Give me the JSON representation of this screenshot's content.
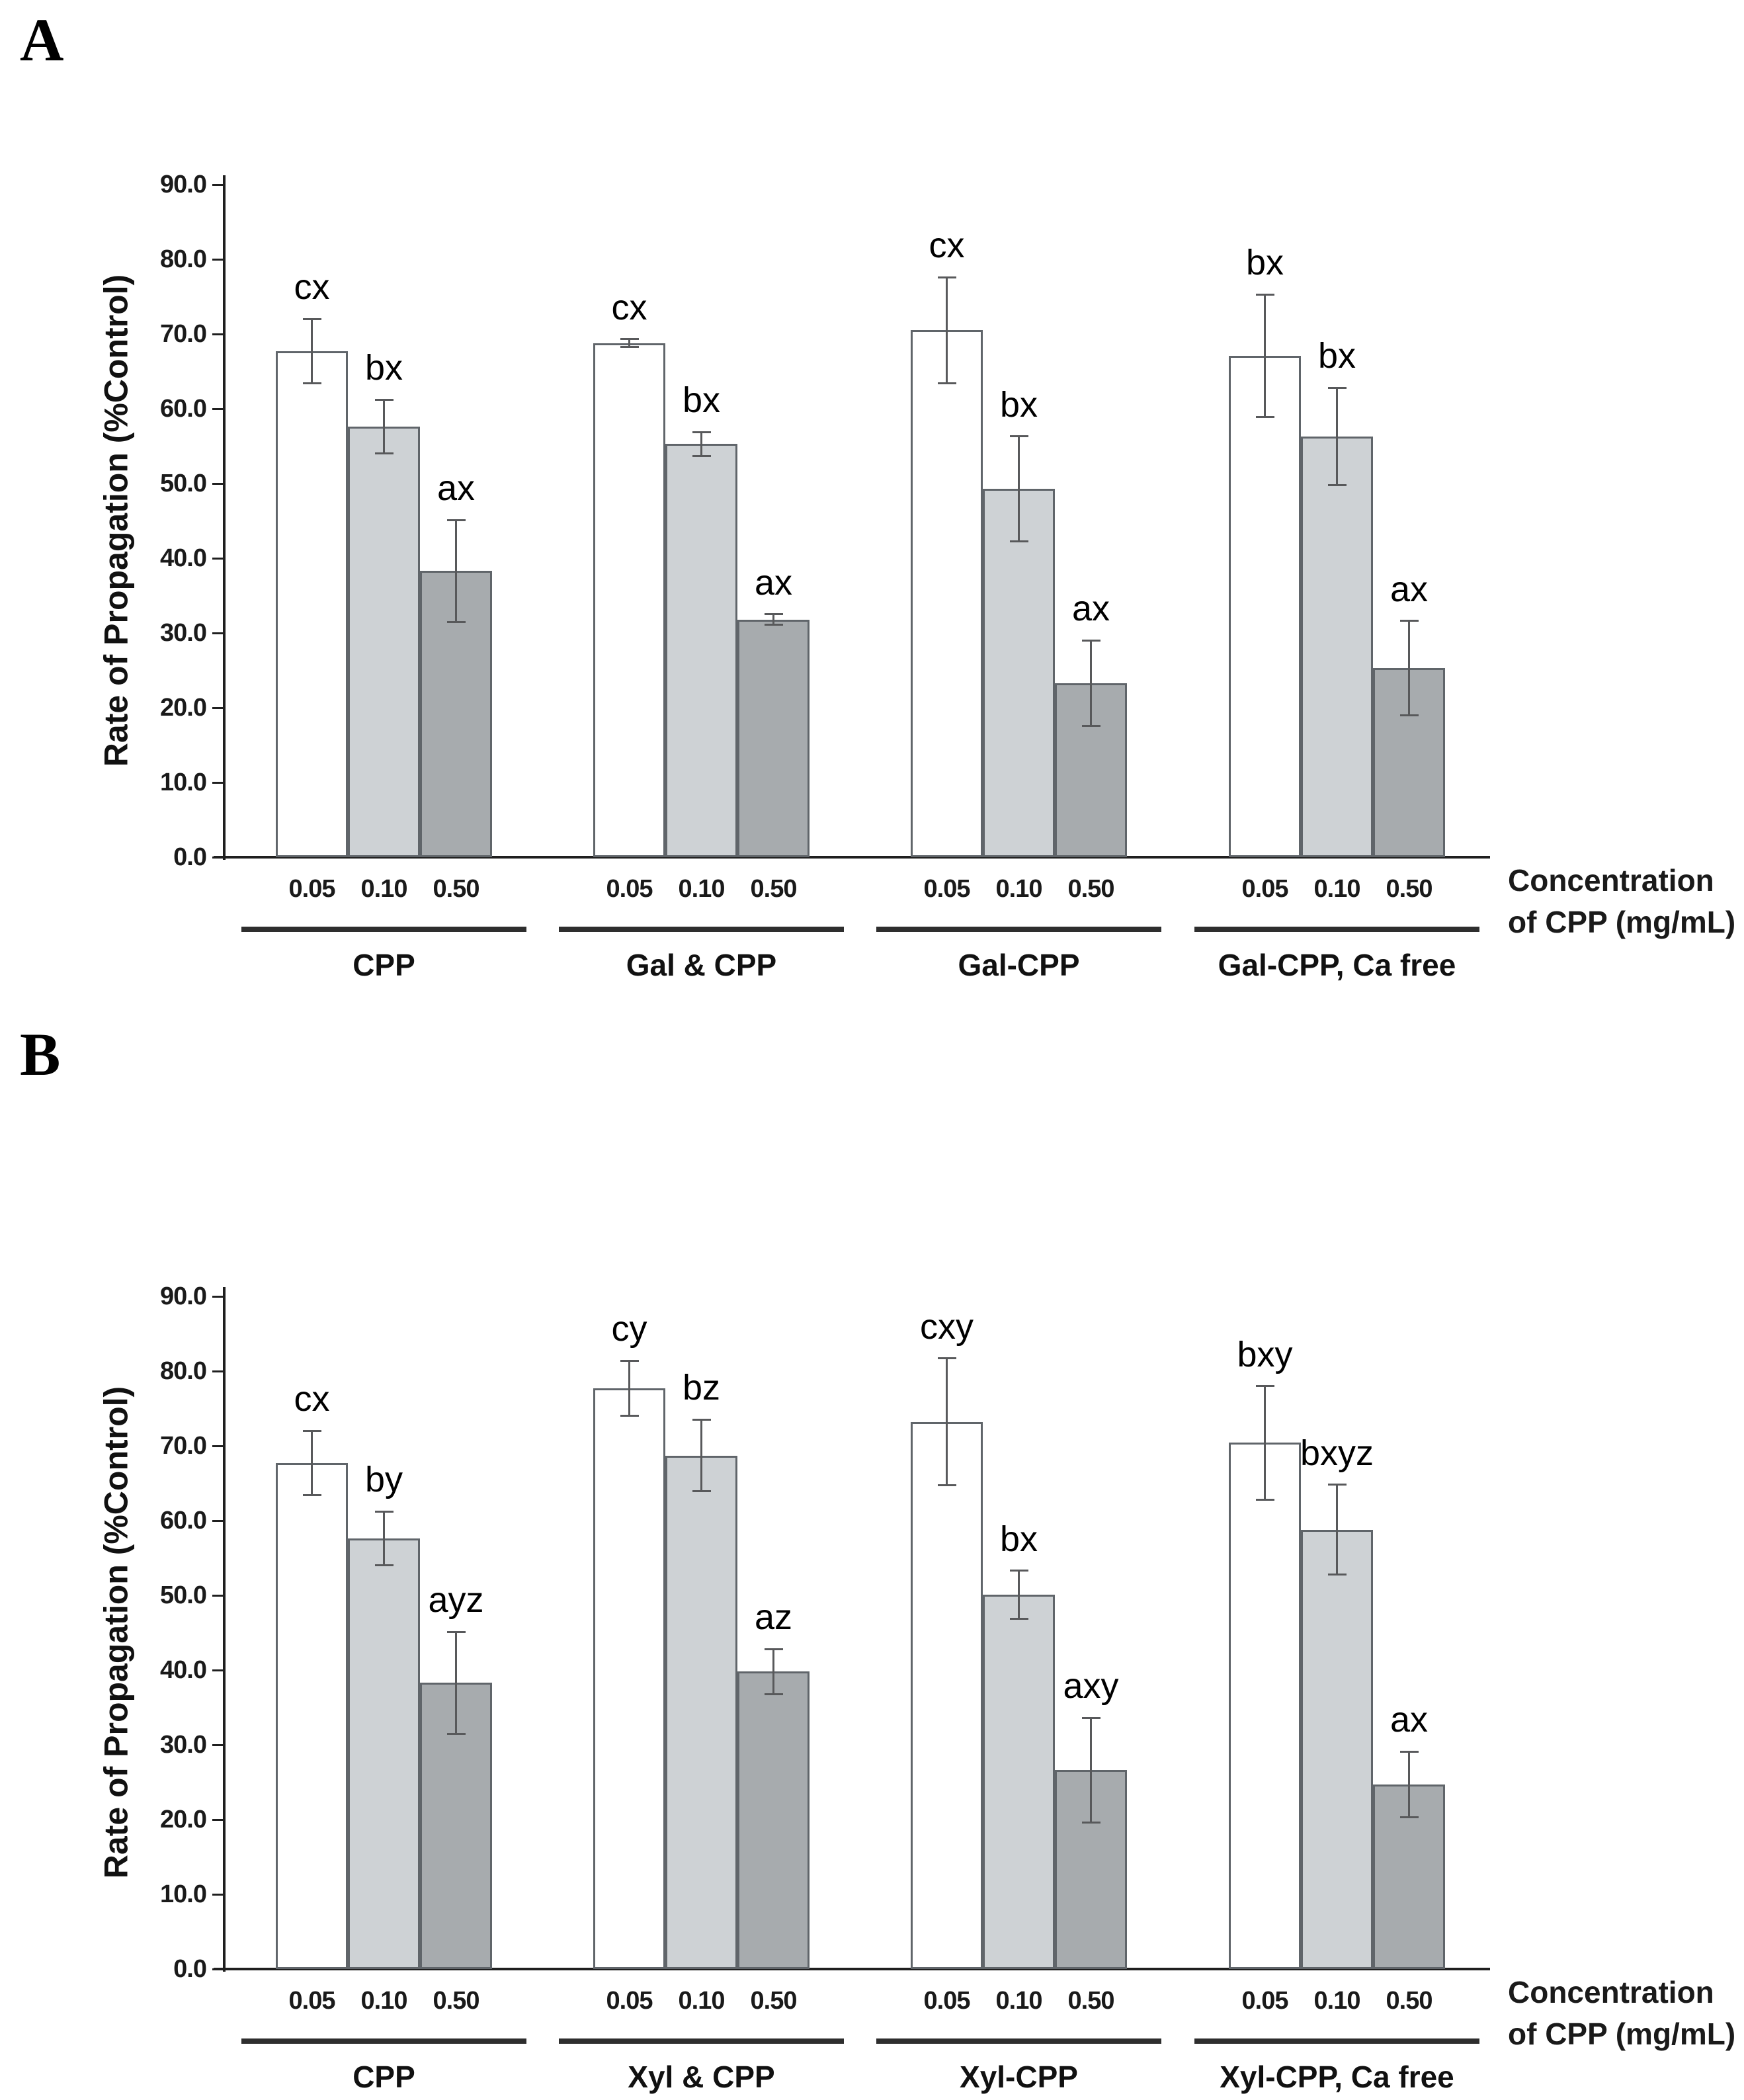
{
  "figure_type": "two-panel grouped bar chart with error bars",
  "chart_data": [
    {
      "type": "bar",
      "panel_label": "A",
      "ylabel": "Rate of Propagation (%Control)",
      "xlabel_note_line1": "Concentration",
      "xlabel_note_line2": "of CPP (mg/mL)",
      "ylim": [
        0,
        90
      ],
      "ytick_step": 10,
      "ytick_labels": [
        "0.0",
        "10.0",
        "20.0",
        "30.0",
        "40.0",
        "50.0",
        "60.0",
        "70.0",
        "80.0",
        "90.0"
      ],
      "grid": false,
      "legend": "none",
      "concentration_labels": [
        "0.05",
        "0.10",
        "0.50"
      ],
      "groups": [
        "CPP",
        "Gal & CPP",
        "Gal-CPP",
        "Gal-CPP, Ca free"
      ],
      "series": [
        {
          "name": "0.05 mg/mL",
          "fill": "#ffffff",
          "values": [
            67.7,
            68.8,
            70.5,
            67.1
          ],
          "errors": [
            4.3,
            0.5,
            7.1,
            8.2
          ],
          "sig_labels": [
            "cx",
            "cx",
            "cx",
            "bx"
          ]
        },
        {
          "name": "0.10 mg/mL",
          "fill": "#ced2d5",
          "values": [
            57.6,
            55.3,
            49.3,
            56.3
          ],
          "errors": [
            3.6,
            1.6,
            7.0,
            6.5
          ],
          "sig_labels": [
            "bx",
            "bx",
            "bx",
            "bx"
          ]
        },
        {
          "name": "0.50 mg/mL",
          "fill": "#a7abae",
          "values": [
            38.3,
            31.8,
            23.3,
            25.3
          ],
          "errors": [
            6.8,
            0.7,
            5.7,
            6.3
          ],
          "sig_labels": [
            "ax",
            "ax",
            "ax",
            "ax"
          ]
        }
      ]
    },
    {
      "type": "bar",
      "panel_label": "B",
      "ylabel": "Rate of Propagation (%Control)",
      "xlabel_note_line1": "Concentration",
      "xlabel_note_line2": "of CPP (mg/mL)",
      "ylim": [
        0,
        90
      ],
      "ytick_step": 10,
      "ytick_labels": [
        "0.0",
        "10.0",
        "20.0",
        "30.0",
        "40.0",
        "50.0",
        "60.0",
        "70.0",
        "80.0",
        "90.0"
      ],
      "grid": false,
      "legend": "none",
      "concentration_labels": [
        "0.05",
        "0.10",
        "0.50"
      ],
      "groups": [
        "CPP",
        "Xyl & CPP",
        "Xyl-CPP",
        "Xyl-CPP, Ca free"
      ],
      "series": [
        {
          "name": "0.05 mg/mL",
          "fill": "#ffffff",
          "values": [
            67.7,
            77.7,
            73.2,
            70.4
          ],
          "errors": [
            4.3,
            3.7,
            8.5,
            7.6
          ],
          "sig_labels": [
            "cx",
            "cy",
            "cxy",
            "bxy"
          ]
        },
        {
          "name": "0.10 mg/mL",
          "fill": "#ced2d5",
          "values": [
            57.6,
            68.7,
            50.1,
            58.8
          ],
          "errors": [
            3.6,
            4.8,
            3.2,
            6.0
          ],
          "sig_labels": [
            "by",
            "bz",
            "bx",
            "bxyz"
          ]
        },
        {
          "name": "0.50 mg/mL",
          "fill": "#a7abae",
          "values": [
            38.3,
            39.8,
            26.6,
            24.7
          ],
          "errors": [
            6.8,
            3.0,
            7.0,
            4.4
          ],
          "sig_labels": [
            "ayz",
            "az",
            "axy",
            "ax"
          ]
        }
      ]
    }
  ],
  "colors": {
    "bar_fill_005": "#ffffff",
    "bar_fill_010": "#ced2d5",
    "bar_fill_050": "#a7abae",
    "bar_border": "#60656a",
    "error_bar": "#58595b",
    "axis": "#1f1f1f",
    "text": "#1a1a1a"
  }
}
